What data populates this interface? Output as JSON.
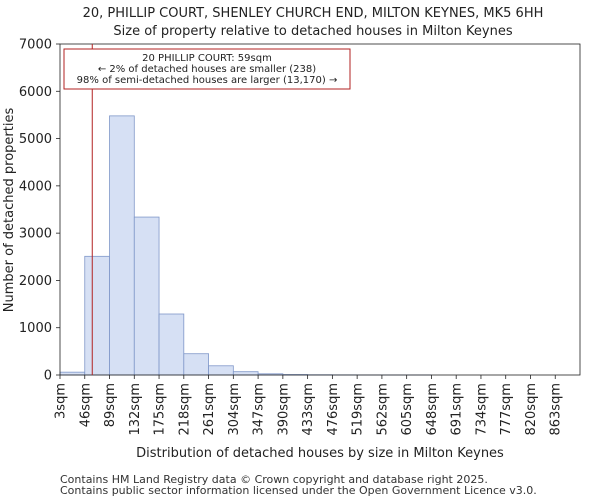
{
  "chart_data": {
    "type": "bar",
    "title": "20, PHILLIP COURT, SHENLEY CHURCH END, MILTON KEYNES, MK5 6HH",
    "subtitle": "Size of property relative to detached houses in Milton Keynes",
    "xlabel": "Distribution of detached houses by size in Milton Keynes",
    "ylabel": "Number of detached properties",
    "categories": [
      "3sqm",
      "46sqm",
      "89sqm",
      "132sqm",
      "175sqm",
      "218sqm",
      "261sqm",
      "304sqm",
      "347sqm",
      "390sqm",
      "433sqm",
      "476sqm",
      "519sqm",
      "562sqm",
      "605sqm",
      "648sqm",
      "691sqm",
      "734sqm",
      "777sqm",
      "820sqm",
      "863sqm"
    ],
    "values": [
      60,
      2510,
      5480,
      3340,
      1290,
      450,
      195,
      70,
      25,
      10,
      5,
      3,
      2,
      1,
      1,
      0,
      0,
      0,
      0,
      0,
      0
    ],
    "yticks": [
      0,
      1000,
      2000,
      3000,
      4000,
      5000,
      6000,
      7000
    ],
    "ylim": [
      0,
      7000
    ],
    "grid": false,
    "bar_fill": "#d6e0f4",
    "bar_stroke": "#7f97c9",
    "marker": {
      "value": 59,
      "category_start": 3,
      "category_step": 43,
      "color": "#b22222"
    },
    "annotation": {
      "lines": [
        "20 PHILLIP COURT: 59sqm",
        "← 2% of detached houses are smaller (238)",
        "98% of semi-detached houses are larger (13,170) →"
      ],
      "border_color": "#b22222"
    }
  },
  "footer": {
    "line1": "Contains HM Land Registry data © Crown copyright and database right 2025.",
    "line2": "Contains public sector information licensed under the Open Government Licence v3.0."
  }
}
